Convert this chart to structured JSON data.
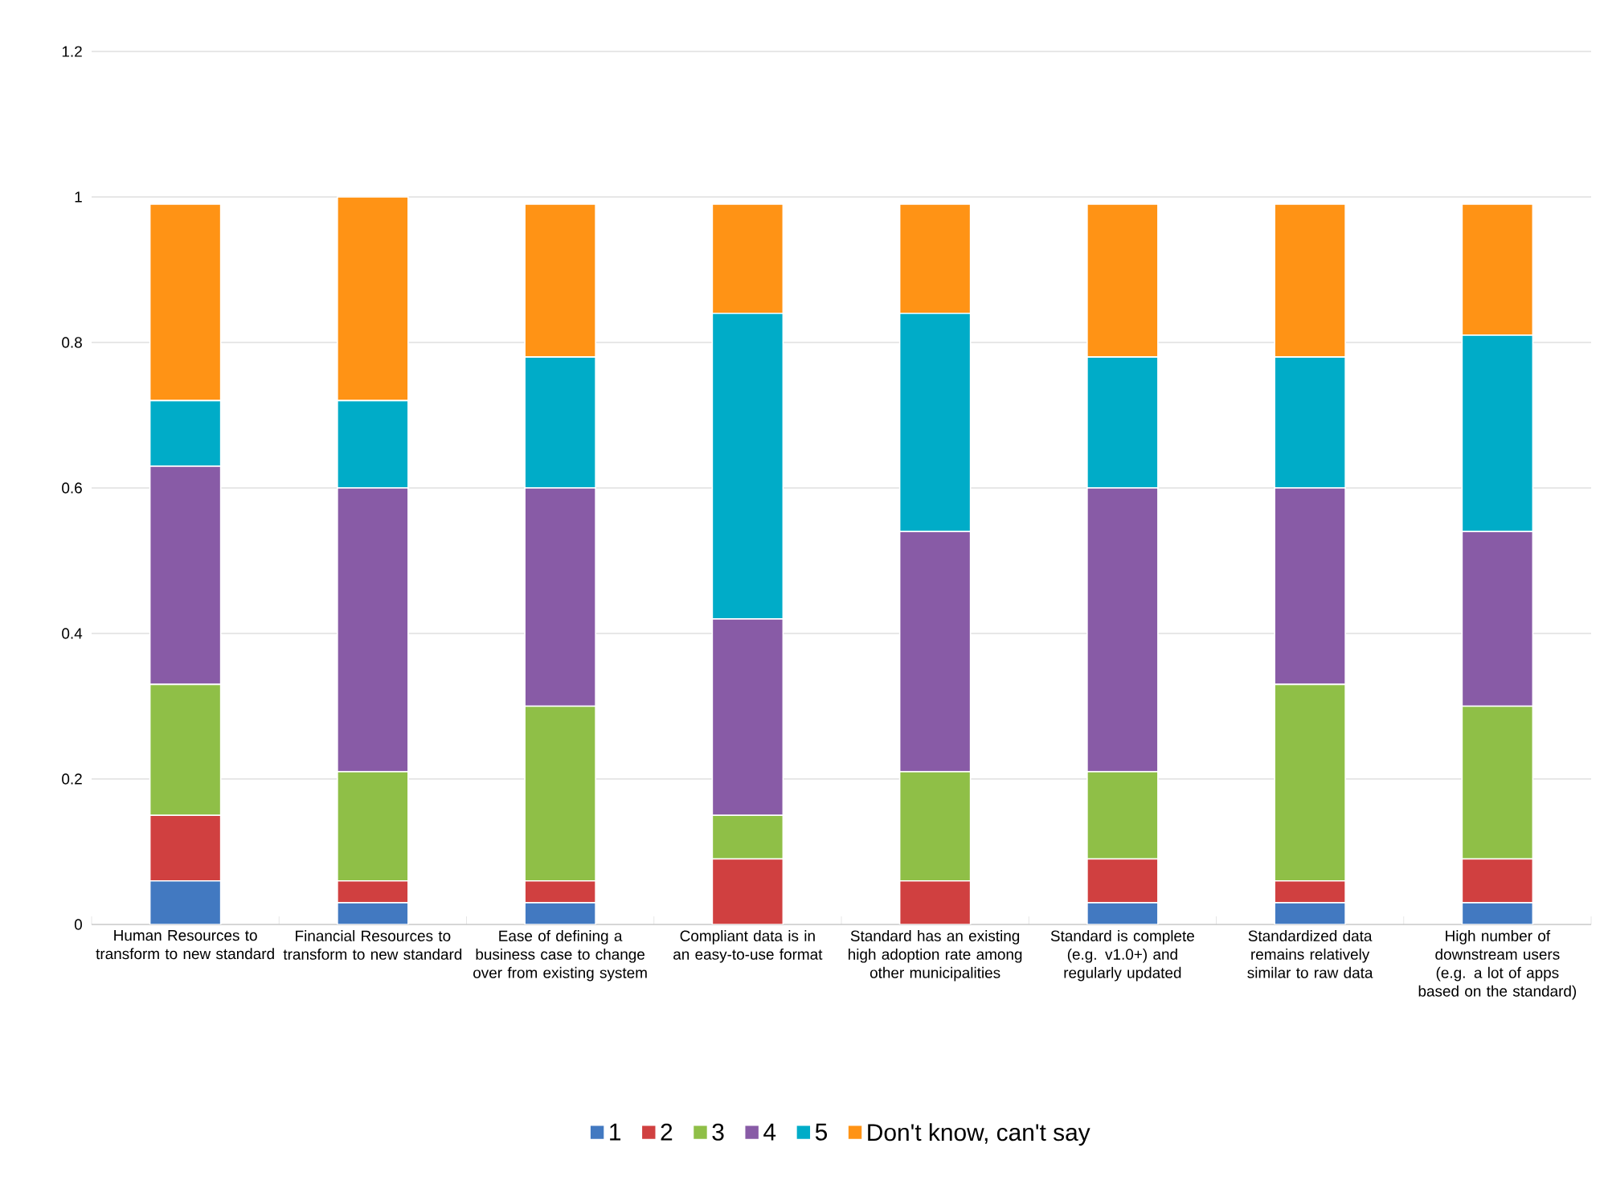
{
  "chart_data": {
    "type": "bar",
    "stacked": true,
    "categories": [
      "Human Resources to transform to new standard",
      "Financial Resources to transform to new standard",
      "Ease of defining a business case to change over from existing system",
      "Compliant data is in an easy-to-use format",
      "Standard has an existing high adoption rate among other municipalities",
      "Standard is complete (e.g. v1.0+) and regularly updated",
      "Standardized data remains relatively similar to raw data",
      "High number of downstream users (e.g. a lot of apps based on the standard)"
    ],
    "series": [
      {
        "name": "1",
        "color": "#4279c1",
        "values": [
          0.06,
          0.03,
          0.03,
          0,
          0,
          0.03,
          0.03,
          0.03
        ]
      },
      {
        "name": "2",
        "color": "#d04040",
        "values": [
          0.09,
          0.03,
          0.03,
          0.09,
          0.06,
          0.06,
          0.03,
          0.06
        ]
      },
      {
        "name": "3",
        "color": "#8fbf47",
        "values": [
          0.18,
          0.15,
          0.24,
          0.06,
          0.15,
          0.12,
          0.27,
          0.21
        ]
      },
      {
        "name": "4",
        "color": "#885ba6",
        "values": [
          0.3,
          0.39,
          0.3,
          0.27,
          0.33,
          0.39,
          0.27,
          0.24
        ]
      },
      {
        "name": "5",
        "color": "#00acc8",
        "values": [
          0.09,
          0.12,
          0.18,
          0.42,
          0.3,
          0.18,
          0.18,
          0.27
        ]
      },
      {
        "name": "Don't know, can't say",
        "color": "#ff9315",
        "values": [
          0.27,
          0.28,
          0.21,
          0.15,
          0.15,
          0.21,
          0.21,
          0.18
        ]
      }
    ],
    "ylim": [
      0,
      1.2
    ],
    "yticks": [
      0,
      0.2,
      0.4,
      0.6,
      0.8,
      1,
      1.2
    ],
    "grid": "y",
    "legend": "bottom"
  }
}
